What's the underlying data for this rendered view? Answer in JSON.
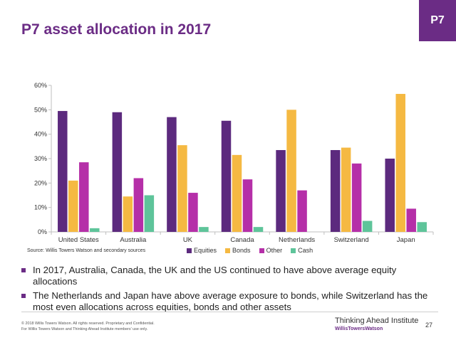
{
  "slide": {
    "title": "P7 asset allocation in 2017",
    "badge": "P7",
    "source": "Source: Willis Towers Watson and secondary sources",
    "bullets": [
      "In 2017, Australia, Canada, the UK and the US continued to have above average equity allocations",
      "The Netherlands and Japan have above average exposure to bonds, while Switzerland has the most even allocations across equities, bonds and other assets"
    ],
    "footer": {
      "copyright": "© 2018 Willis Towers Watson. All rights reserved. Proprietary and Confidential.",
      "usage": "For Willis Towers Watson and Thinking Ahead Institute members' use only.",
      "brand": "Thinking Ahead Institute",
      "brand_sub": "WillisTowersWatson",
      "page_number": "27"
    }
  },
  "chart_data": {
    "type": "bar",
    "categories": [
      "United States",
      "Australia",
      "UK",
      "Canada",
      "Netherlands",
      "Switzerland",
      "Japan"
    ],
    "series": [
      {
        "name": "Equities",
        "color": "#5c2a7e",
        "values": [
          49.5,
          49,
          47,
          45.5,
          33.5,
          33.5,
          30
        ]
      },
      {
        "name": "Bonds",
        "color": "#f5b942",
        "values": [
          21,
          14.5,
          35.5,
          31.5,
          50,
          34.5,
          56.5
        ]
      },
      {
        "name": "Other",
        "color": "#b52fa8",
        "values": [
          28.5,
          22,
          16,
          21.5,
          17,
          28,
          9.5
        ]
      },
      {
        "name": "Cash",
        "color": "#5ec49a",
        "values": [
          1.5,
          15,
          2,
          2,
          0,
          4.5,
          4
        ]
      }
    ],
    "yticks": [
      "0%",
      "10%",
      "20%",
      "30%",
      "40%",
      "50%",
      "60%"
    ],
    "ylim": [
      0,
      60
    ],
    "grid": false,
    "legend_position": "bottom"
  }
}
